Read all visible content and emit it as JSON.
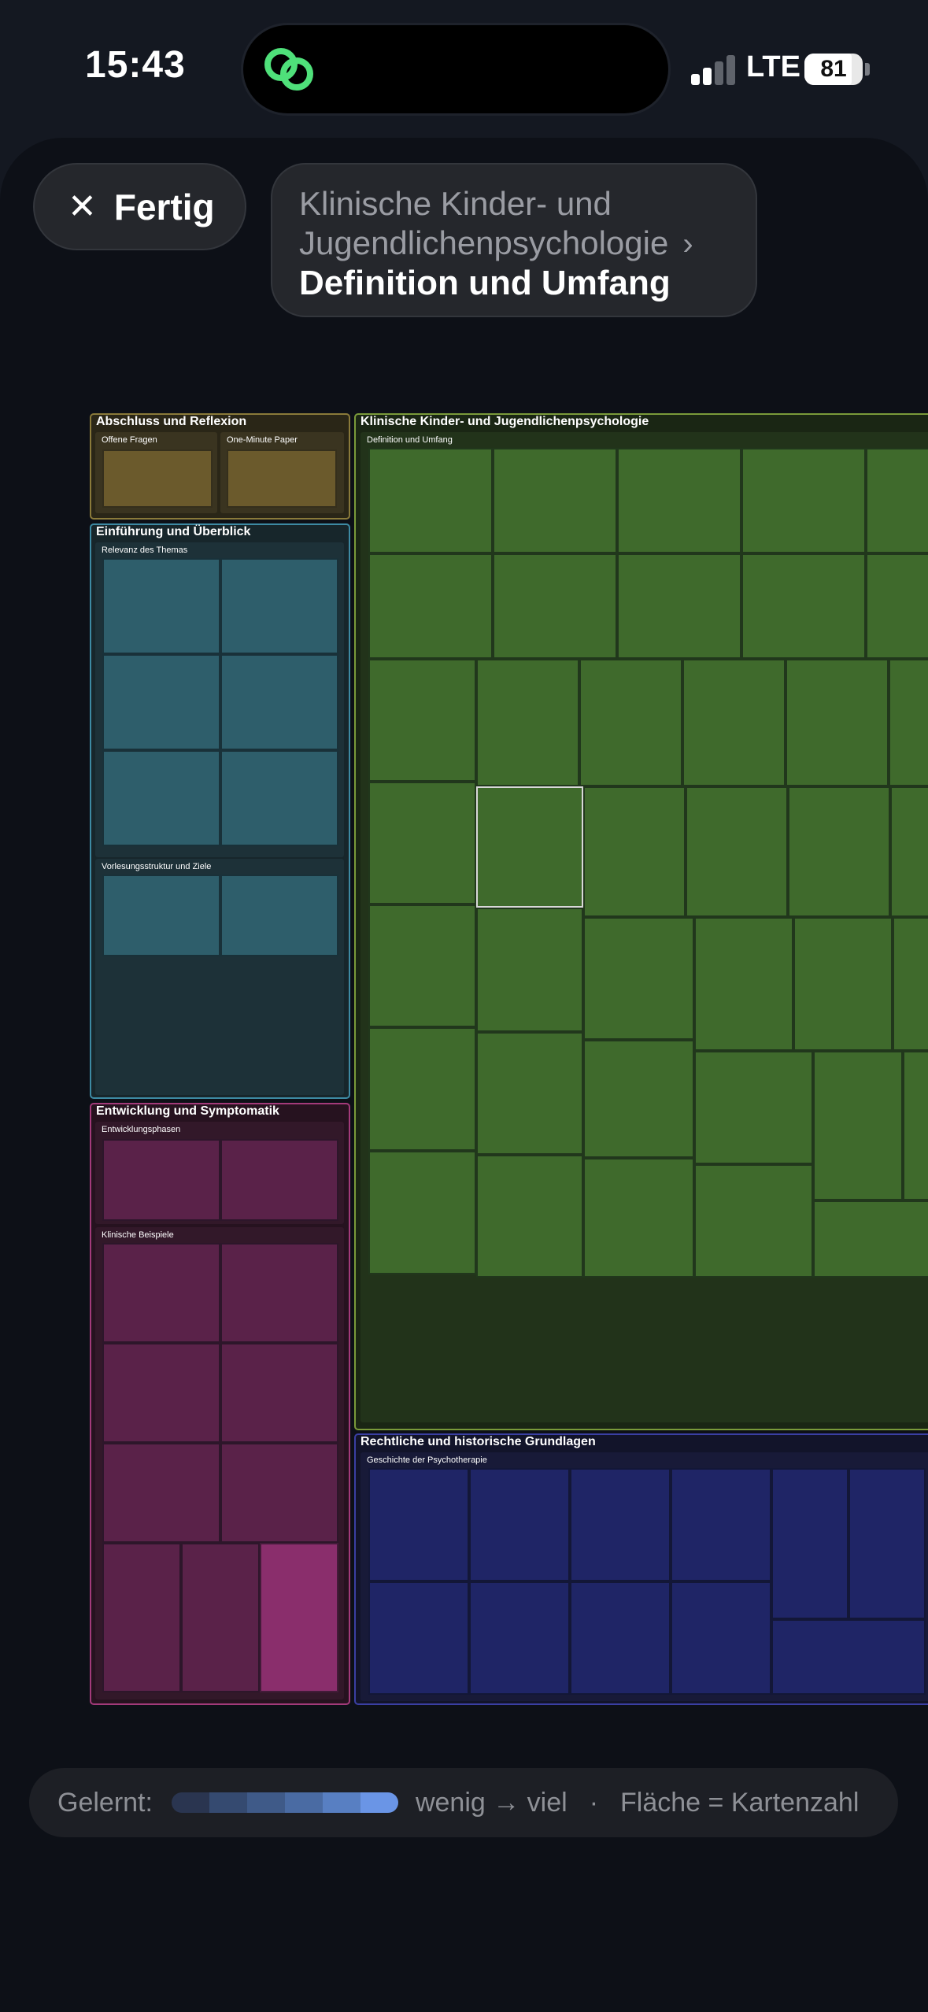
{
  "status": {
    "time": "15:43",
    "network": "LTE",
    "battery": "81",
    "battery_level": 0.81
  },
  "toolbar": {
    "done_label": "Fertig",
    "close_icon": "close-icon"
  },
  "breadcrumb": {
    "parent": "Klinische Kinder- und Jugendlichenpsychologie",
    "current": "Definition und Umfang",
    "separator": "›"
  },
  "colors": {
    "yellow": "#6b5a2c",
    "teal": "#2e5e6b",
    "pink": "#5a2249",
    "pink_active": "#8a2e6c",
    "green": "#3f6a2c",
    "blue": "#1f2566"
  },
  "treemap": {
    "groups": [
      {
        "title": "Abschluss und Reflexion",
        "subgroups": [
          {
            "title": "Offene Fragen"
          },
          {
            "title": "One-Minute Paper"
          }
        ]
      },
      {
        "title": "Einführung und Überblick",
        "subgroups": [
          {
            "title": "Relevanz des Themas"
          },
          {
            "title": "Vorlesungsstruktur und Ziele"
          }
        ]
      },
      {
        "title": "Entwicklung und Symptomatik",
        "subgroups": [
          {
            "title": "Entwicklungsphasen"
          },
          {
            "title": "Klinische Beispiele"
          }
        ]
      },
      {
        "title": "Klinische Kinder- und Jugendlichenpsychologie",
        "subgroups": [
          {
            "title": "Definition und Umfang"
          }
        ]
      },
      {
        "title": "Rechtliche und historische Grundlagen",
        "subgroups": [
          {
            "title": "Geschichte der Psychotherapie"
          }
        ]
      }
    ]
  },
  "legend": {
    "label": "Gelernt:",
    "range": "wenig → viel",
    "separator": "·",
    "area_note": "Fläche = Kartenzahl",
    "gradient": [
      "#2a3550",
      "#354a70",
      "#3f5a88",
      "#4a6ba3",
      "#587fc2",
      "#6a95e6"
    ]
  }
}
